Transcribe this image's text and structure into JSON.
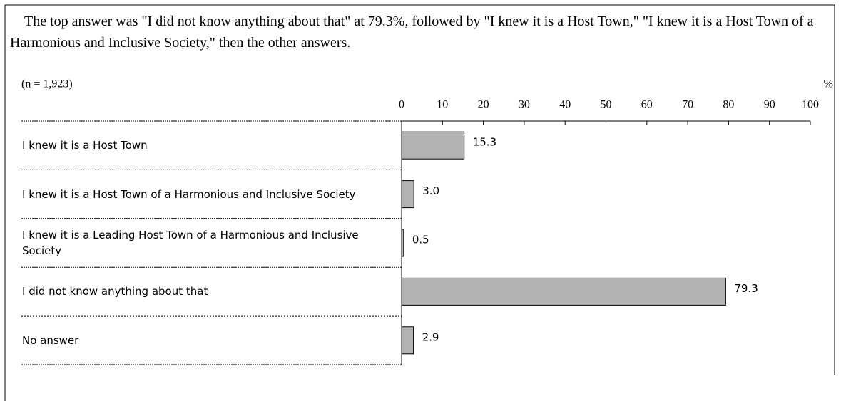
{
  "chart_data": {
    "type": "hbar",
    "title": "The top answer was \"I did not know anything about that\" at 79.3%, followed by \"I knew it is a Host Town,\" \"I knew it is a Host Town of a Harmonious and Inclusive Society,\" then the other answers.",
    "note": "(n = 1,923)",
    "unit": "%",
    "categories": [
      "I knew it is a Host Town",
      "I knew it is a Host Town of a Harmonious and Inclusive Society",
      "I knew it is a Leading Host Town of a Harmonious and Inclusive Society",
      "I did not know anything about that",
      "No answer"
    ],
    "values": [
      15.3,
      3.0,
      0.5,
      79.3,
      2.9
    ],
    "value_labels": [
      "15.3",
      "3.0",
      "0.5",
      "79.3",
      "2.9"
    ],
    "color": "#b3b3b3",
    "xlim": [
      0,
      100
    ],
    "xticks": [
      0,
      10,
      20,
      30,
      40,
      50,
      60,
      70,
      80,
      90,
      100
    ]
  }
}
